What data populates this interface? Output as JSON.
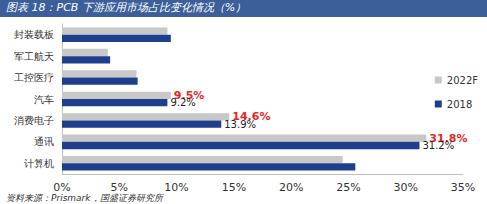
{
  "chart_data": {
    "type": "bar",
    "title": "图表 18：PCB 下游应用市场占比变化情况（%）",
    "source": "资料来源：Prismark，国盛证券研究所",
    "orientation": "horizontal",
    "categories": [
      "封装载板",
      "军工航天",
      "工控医疗",
      "汽车",
      "消费电子",
      "通讯",
      "计算机"
    ],
    "series": [
      {
        "name": "2022F",
        "color": "#c8c8c8",
        "values": [
          9.2,
          4.0,
          6.5,
          9.5,
          14.6,
          31.8,
          24.5
        ],
        "value_labels": [
          null,
          null,
          null,
          "9.5%",
          "14.6%",
          "31.8%",
          null
        ]
      },
      {
        "name": "2018",
        "color": "#1f3e8c",
        "values": [
          9.5,
          4.2,
          6.6,
          9.2,
          13.9,
          31.2,
          25.6
        ],
        "value_labels": [
          null,
          null,
          null,
          "9.2%",
          "13.9%",
          "31.2%",
          null
        ]
      }
    ],
    "xlim": [
      0,
      35
    ],
    "xticks": [
      {
        "value": 0,
        "label": "0%"
      },
      {
        "value": 5,
        "label": "5%"
      },
      {
        "value": 10,
        "label": "10%"
      },
      {
        "value": 15,
        "label": "15%"
      },
      {
        "value": 20,
        "label": "20%"
      },
      {
        "value": 25,
        "label": "25%"
      },
      {
        "value": 30,
        "label": "30%"
      },
      {
        "value": 35,
        "label": "35%"
      }
    ],
    "grid": false,
    "legend": "right",
    "data_labels": true
  }
}
